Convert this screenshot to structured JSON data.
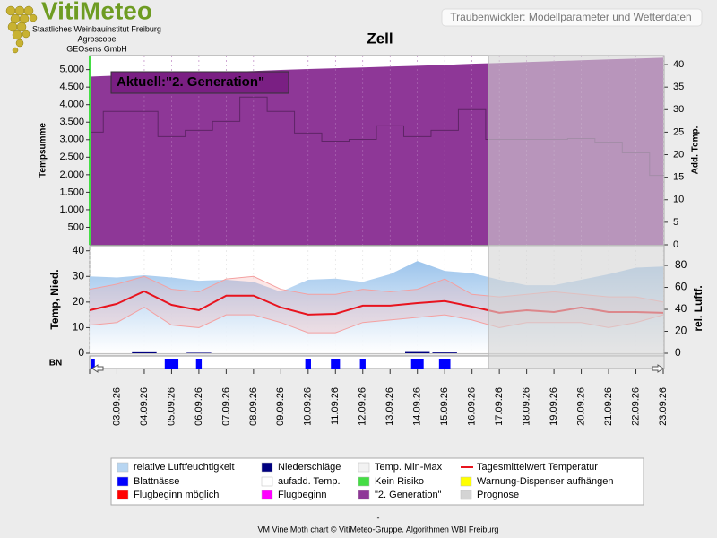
{
  "header": {
    "logo": "VitiMeteo",
    "institutes": [
      "Staatliches Weinbauinstitut Freiburg",
      "Agroscope",
      "GEOsens GmbH"
    ],
    "app_title": "Traubenwickler: Modellparameter und Wetterdaten"
  },
  "chart_data": [
    {
      "type": "area",
      "title": "Zell",
      "annotation": "Aktuell:\"2. Generation\"",
      "categories": [
        null,
        "03.09.26",
        "04.09.26",
        "05.09.26",
        "06.09.26",
        "07.09.26",
        "08.09.26",
        "09.09.26",
        "10.09.26",
        "11.09.26",
        "12.09.26",
        "13.09.26",
        "14.09.26",
        "15.09.26",
        "16.09.26",
        "17.09.26",
        "18.09.26",
        "19.09.26",
        "20.09.26",
        "21.09.26",
        "22.09.26",
        "23.09.26"
      ],
      "ylabel": "Tempsumme",
      "y2label": "Add. Temp.",
      "ylim": [
        0,
        5400
      ],
      "yticks": [
        500,
        {
          "value": 1000,
          "label": "1.000"
        },
        {
          "value": 1500,
          "label": "1.500"
        },
        {
          "value": 2000,
          "label": "2.000"
        },
        {
          "value": 2500,
          "label": "2.500"
        },
        {
          "value": 3000,
          "label": "3.000"
        },
        {
          "value": 3500,
          "label": "3.500"
        },
        {
          "value": 4000,
          "label": "4.000"
        },
        {
          "value": 4500,
          "label": "4.500"
        },
        {
          "value": 5000,
          "label": "5.000"
        }
      ],
      "y2lim": [
        0,
        42
      ],
      "y2ticks": [
        0,
        5,
        10,
        15,
        20,
        25,
        30,
        35,
        40
      ],
      "prognosis_x": 14.6,
      "series": [
        {
          "name": "\"2. Generation\"",
          "color": "#8e3797",
          "values": [
            4800,
            4830,
            4855,
            4880,
            4905,
            4930,
            4960,
            4990,
            5015,
            5040,
            5060,
            5085,
            5110,
            5135,
            5165,
            5190,
            5215,
            5240,
            5265,
            5290,
            5315,
            5340
          ]
        },
        {
          "name": "aufadd. Temp.",
          "color": "#5e2466",
          "axis": "y2",
          "values": [
            25,
            29.6,
            29.6,
            24,
            25.4,
            27.4,
            32.8,
            29.6,
            24.8,
            23,
            23.4,
            26.4,
            24,
            25.4,
            30,
            23.4,
            23.4,
            23.4,
            23.6,
            22.8,
            20.4,
            15.4
          ]
        }
      ]
    },
    {
      "type": "line",
      "categories_from": 0,
      "ylabel": "Temp, Nied.",
      "y2label": "rel. Luftf.",
      "bn_label": "BN",
      "ylim": [
        0,
        42
      ],
      "yticks": [
        0,
        10,
        20,
        30,
        40
      ],
      "y2lim": [
        0,
        98
      ],
      "y2ticks": [
        0,
        20,
        40,
        60,
        80
      ],
      "series": [
        {
          "name": "relative Luftfeuchtigkeit",
          "color": "#a9cdee",
          "axis": "y2",
          "values": [
            70,
            69,
            71,
            69,
            66,
            67,
            65,
            56,
            67,
            68,
            65,
            72,
            84,
            75,
            73,
            67,
            62,
            62,
            67,
            72,
            78,
            79
          ]
        },
        {
          "name": "Temp. Min-Max",
          "color": "#f4a0a0",
          "max": [
            25,
            27,
            30,
            25,
            24,
            29,
            30,
            25,
            23,
            23,
            25,
            24,
            25,
            29,
            23,
            22,
            23,
            24,
            23,
            22,
            22,
            20
          ],
          "min": [
            11,
            12,
            18,
            11,
            10,
            15,
            15,
            12,
            8,
            8,
            12,
            13,
            14,
            15,
            13,
            10,
            12,
            12,
            12,
            10,
            12,
            15
          ]
        },
        {
          "name": "Tagesmittelwert Temperatur",
          "color": "#e8141e",
          "values": [
            16.8,
            19.3,
            24.2,
            18.9,
            16.8,
            22.5,
            22.5,
            17.9,
            15.1,
            15.4,
            18.6,
            18.6,
            19.6,
            20.4,
            18.2,
            15.8,
            16.8,
            16.1,
            17.9,
            16.1,
            16.1,
            15.8
          ]
        },
        {
          "name": "Niederschläge",
          "color": "#000080",
          "values": [
            0,
            0,
            0.4,
            0,
            0.2,
            0,
            0,
            0,
            0,
            0,
            0,
            0,
            0.5,
            0.3,
            0,
            0,
            0,
            0,
            0,
            0,
            0,
            0
          ]
        },
        {
          "name": "Blattnässe",
          "color": "#0000ff",
          "values": [
            3,
            0,
            0,
            12,
            5,
            0,
            0,
            0,
            5,
            8,
            5,
            0,
            11,
            10,
            0,
            0,
            0,
            0,
            0,
            0,
            0,
            0
          ]
        }
      ]
    }
  ],
  "legend_extra": [
    {
      "name": "Kein Risiko",
      "color": "#44dd44"
    },
    {
      "name": "Warnung-Dispenser aufhängen",
      "color": "#ffff00"
    },
    {
      "name": "Flugbeginn möglich",
      "color": "#ff0000"
    },
    {
      "name": "Flugbeginn",
      "color": "#ff00ff"
    },
    {
      "name": "Prognose",
      "color": "#d4d4d4"
    }
  ],
  "footer": {
    "dash": "-",
    "credit": "VM Vine Moth chart © VitiMeteo-Gruppe. Algorithmen WBI Freiburg"
  }
}
